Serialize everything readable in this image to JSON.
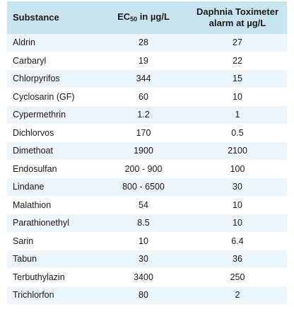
{
  "table": {
    "headers": {
      "substance": "Substance",
      "ec_prefix": "EC",
      "ec_sub": "50",
      "ec_suffix": " in µg/L",
      "alarm_line1": "Daphnia Toximeter",
      "alarm_line2": "alarm at µg/L"
    },
    "rows": [
      {
        "substance": "Aldrin",
        "ec50": "28",
        "alarm": "27"
      },
      {
        "substance": "Carbaryl",
        "ec50": "19",
        "alarm": "22"
      },
      {
        "substance": "Chlorpyrifos",
        "ec50": "344",
        "alarm": "15"
      },
      {
        "substance": "Cyclosarin (GF)",
        "ec50": "60",
        "alarm": "10"
      },
      {
        "substance": "Cypermethrin",
        "ec50": "1.2",
        "alarm": "1"
      },
      {
        "substance": "Dichlorvos",
        "ec50": "170",
        "alarm": "0.5"
      },
      {
        "substance": "Dimethoat",
        "ec50": "1900",
        "alarm": "2100"
      },
      {
        "substance": "Endosulfan",
        "ec50": "200 - 900",
        "alarm": "100"
      },
      {
        "substance": "Lindane",
        "ec50": "800 - 6500",
        "alarm": "30"
      },
      {
        "substance": "Malathion",
        "ec50": "54",
        "alarm": "10"
      },
      {
        "substance": "Parathionethyl",
        "ec50": "8.5",
        "alarm": "10"
      },
      {
        "substance": "Sarin",
        "ec50": "10",
        "alarm": "6.4"
      },
      {
        "substance": "Tabun",
        "ec50": "30",
        "alarm": "36"
      },
      {
        "substance": "Terbuthylazin",
        "ec50": "3400",
        "alarm": "250"
      },
      {
        "substance": "Trichlorfon",
        "ec50": "80",
        "alarm": "2"
      }
    ]
  },
  "colors": {
    "header_bg": "#c9e4f1",
    "stripe_bg": "#edf5fa"
  }
}
